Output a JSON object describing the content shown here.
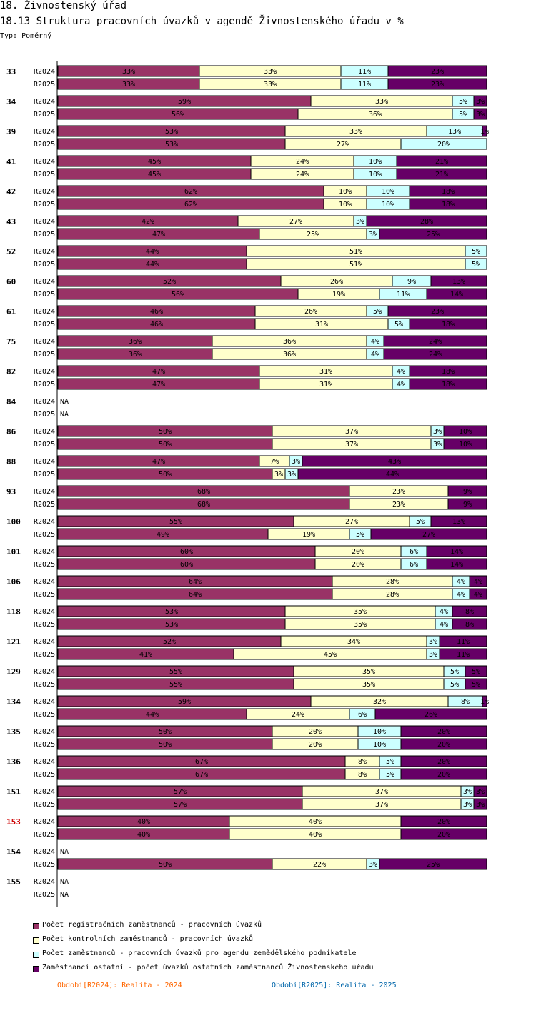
{
  "header": {
    "title": "18. Živnostenský úřad",
    "subtitle": "18.13 Struktura pracovních úvazků v agendě Živnostenského úřadu v %",
    "type": "Typ: Poměrný"
  },
  "chart_data": {
    "type": "bar",
    "orientation": "horizontal",
    "stacked": "100%",
    "title": "18.13 Struktura pracovních úvazků v agendě Živnostenského úřadu v %",
    "unit": "%",
    "series": [
      {
        "name": "Počet registračních zaměstnanců - pracovních úvazků",
        "color": "#993366"
      },
      {
        "name": "Počet kontrolních zaměstnanců - pracovních úvazků",
        "color": "#ffffcc"
      },
      {
        "name": "Počet zaměstnanců - pracovních úvazků pro agendu zemědělského podnikatele",
        "color": "#ccffff"
      },
      {
        "name": "Zaměstnanci ostatní - počet úvazků ostatních zaměstnanců Živnostenského úřadu",
        "color": "#660066"
      }
    ],
    "na_label": "NA",
    "groups": [
      {
        "id": "33",
        "highlight": false,
        "rows": [
          {
            "period": "R2024",
            "values": [
              33,
              33,
              11,
              23
            ]
          },
          {
            "period": "R2025",
            "values": [
              33,
              33,
              11,
              23
            ]
          }
        ]
      },
      {
        "id": "34",
        "highlight": false,
        "rows": [
          {
            "period": "R2024",
            "values": [
              59,
              33,
              5,
              3
            ]
          },
          {
            "period": "R2025",
            "values": [
              56,
              36,
              5,
              3
            ]
          }
        ]
      },
      {
        "id": "39",
        "highlight": false,
        "rows": [
          {
            "period": "R2024",
            "values": [
              53,
              33,
              13,
              1
            ]
          },
          {
            "period": "R2025",
            "values": [
              53,
              27,
              20,
              0
            ]
          }
        ]
      },
      {
        "id": "41",
        "highlight": false,
        "rows": [
          {
            "period": "R2024",
            "values": [
              45,
              24,
              10,
              21
            ]
          },
          {
            "period": "R2025",
            "values": [
              45,
              24,
              10,
              21
            ]
          }
        ]
      },
      {
        "id": "42",
        "highlight": false,
        "rows": [
          {
            "period": "R2024",
            "values": [
              62,
              10,
              10,
              18
            ]
          },
          {
            "period": "R2025",
            "values": [
              62,
              10,
              10,
              18
            ]
          }
        ]
      },
      {
        "id": "43",
        "highlight": false,
        "rows": [
          {
            "period": "R2024",
            "values": [
              42,
              27,
              3,
              28
            ]
          },
          {
            "period": "R2025",
            "values": [
              47,
              25,
              3,
              25
            ]
          }
        ]
      },
      {
        "id": "52",
        "highlight": false,
        "rows": [
          {
            "period": "R2024",
            "values": [
              44,
              51,
              5,
              0
            ]
          },
          {
            "period": "R2025",
            "values": [
              44,
              51,
              5,
              0
            ]
          }
        ]
      },
      {
        "id": "60",
        "highlight": false,
        "rows": [
          {
            "period": "R2024",
            "values": [
              52,
              26,
              9,
              13
            ]
          },
          {
            "period": "R2025",
            "values": [
              56,
              19,
              11,
              14
            ]
          }
        ]
      },
      {
        "id": "61",
        "highlight": false,
        "rows": [
          {
            "period": "R2024",
            "values": [
              46,
              26,
              5,
              23
            ]
          },
          {
            "period": "R2025",
            "values": [
              46,
              31,
              5,
              18
            ]
          }
        ]
      },
      {
        "id": "75",
        "highlight": false,
        "rows": [
          {
            "period": "R2024",
            "values": [
              36,
              36,
              4,
              24
            ]
          },
          {
            "period": "R2025",
            "values": [
              36,
              36,
              4,
              24
            ]
          }
        ]
      },
      {
        "id": "82",
        "highlight": false,
        "rows": [
          {
            "period": "R2024",
            "values": [
              47,
              31,
              4,
              18
            ]
          },
          {
            "period": "R2025",
            "values": [
              47,
              31,
              4,
              18
            ]
          }
        ]
      },
      {
        "id": "84",
        "highlight": false,
        "rows": [
          {
            "period": "R2024",
            "values": null
          },
          {
            "period": "R2025",
            "values": null
          }
        ]
      },
      {
        "id": "86",
        "highlight": false,
        "rows": [
          {
            "period": "R2024",
            "values": [
              50,
              37,
              3,
              10
            ]
          },
          {
            "period": "R2025",
            "values": [
              50,
              37,
              3,
              10
            ]
          }
        ]
      },
      {
        "id": "88",
        "highlight": false,
        "rows": [
          {
            "period": "R2024",
            "values": [
              47,
              7,
              3,
              43
            ]
          },
          {
            "period": "R2025",
            "values": [
              50,
              3,
              3,
              44
            ]
          }
        ]
      },
      {
        "id": "93",
        "highlight": false,
        "rows": [
          {
            "period": "R2024",
            "values": [
              68,
              23,
              0,
              9
            ]
          },
          {
            "period": "R2025",
            "values": [
              68,
              23,
              0,
              9
            ]
          }
        ]
      },
      {
        "id": "100",
        "highlight": false,
        "rows": [
          {
            "period": "R2024",
            "values": [
              55,
              27,
              5,
              13
            ]
          },
          {
            "period": "R2025",
            "values": [
              49,
              19,
              5,
              27
            ]
          }
        ]
      },
      {
        "id": "101",
        "highlight": false,
        "rows": [
          {
            "period": "R2024",
            "values": [
              60,
              20,
              6,
              14
            ]
          },
          {
            "period": "R2025",
            "values": [
              60,
              20,
              6,
              14
            ]
          }
        ]
      },
      {
        "id": "106",
        "highlight": false,
        "rows": [
          {
            "period": "R2024",
            "values": [
              64,
              28,
              4,
              4
            ]
          },
          {
            "period": "R2025",
            "values": [
              64,
              28,
              4,
              4
            ]
          }
        ]
      },
      {
        "id": "118",
        "highlight": false,
        "rows": [
          {
            "period": "R2024",
            "values": [
              53,
              35,
              4,
              8
            ]
          },
          {
            "period": "R2025",
            "values": [
              53,
              35,
              4,
              8
            ]
          }
        ]
      },
      {
        "id": "121",
        "highlight": false,
        "rows": [
          {
            "period": "R2024",
            "values": [
              52,
              34,
              3,
              11
            ]
          },
          {
            "period": "R2025",
            "values": [
              41,
              45,
              3,
              11
            ]
          }
        ]
      },
      {
        "id": "129",
        "highlight": false,
        "rows": [
          {
            "period": "R2024",
            "values": [
              55,
              35,
              5,
              5
            ]
          },
          {
            "period": "R2025",
            "values": [
              55,
              35,
              5,
              5
            ]
          }
        ]
      },
      {
        "id": "134",
        "highlight": false,
        "rows": [
          {
            "period": "R2024",
            "values": [
              59,
              32,
              8,
              1
            ]
          },
          {
            "period": "R2025",
            "values": [
              44,
              24,
              6,
              26
            ]
          }
        ]
      },
      {
        "id": "135",
        "highlight": false,
        "rows": [
          {
            "period": "R2024",
            "values": [
              50,
              20,
              10,
              20
            ]
          },
          {
            "period": "R2025",
            "values": [
              50,
              20,
              10,
              20
            ]
          }
        ]
      },
      {
        "id": "136",
        "highlight": false,
        "rows": [
          {
            "period": "R2024",
            "values": [
              67,
              8,
              5,
              20
            ]
          },
          {
            "period": "R2025",
            "values": [
              67,
              8,
              5,
              20
            ]
          }
        ]
      },
      {
        "id": "151",
        "highlight": false,
        "rows": [
          {
            "period": "R2024",
            "values": [
              57,
              37,
              3,
              3
            ]
          },
          {
            "period": "R2025",
            "values": [
              57,
              37,
              3,
              3
            ]
          }
        ]
      },
      {
        "id": "153",
        "highlight": true,
        "rows": [
          {
            "period": "R2024",
            "values": [
              40,
              40,
              0,
              20
            ]
          },
          {
            "period": "R2025",
            "values": [
              40,
              40,
              0,
              20
            ]
          }
        ]
      },
      {
        "id": "154",
        "highlight": false,
        "rows": [
          {
            "period": "R2024",
            "values": null
          },
          {
            "period": "R2025",
            "values": [
              50,
              22,
              3,
              25
            ]
          }
        ]
      },
      {
        "id": "155",
        "highlight": false,
        "rows": [
          {
            "period": "R2024",
            "values": null
          },
          {
            "period": "R2025",
            "values": null
          }
        ]
      }
    ]
  },
  "legend": {
    "items": [
      {
        "label": "Počet registračních zaměstnanců - pracovních úvazků",
        "color": "#993366"
      },
      {
        "label": "Počet kontrolních zaměstnanců - pracovních úvazků",
        "color": "#ffffcc"
      },
      {
        "label": "Počet zaměstnanců - pracovních úvazků pro agendu zemědělského podnikatele",
        "color": "#ccffff"
      },
      {
        "label": "Zaměstnanci ostatní - počet úvazků ostatních zaměstnanců Živnostenského úřadu",
        "color": "#660066"
      }
    ]
  },
  "periods": {
    "r2024": {
      "label": "Období[R2024]: Realita - 2024",
      "color": "#ff6600"
    },
    "r2025": {
      "label": "Období[R2025]: Realita - 2025",
      "color": "#0066aa"
    }
  },
  "colors": {
    "highlight_id": "#cc0000",
    "axis": "#000000"
  }
}
